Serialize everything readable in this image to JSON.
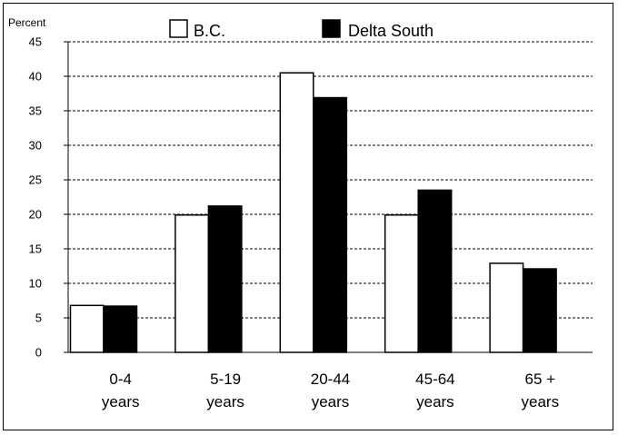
{
  "chart_data": {
    "type": "bar",
    "ylabel": "Percent",
    "ylim": [
      0,
      45
    ],
    "yticks": [
      0,
      5,
      10,
      15,
      20,
      25,
      30,
      35,
      40,
      45
    ],
    "grid": "horizontal dashed",
    "legend_position": "top",
    "categories": [
      [
        "0-4",
        "years"
      ],
      [
        "5-19",
        "years"
      ],
      [
        "20-44",
        "years"
      ],
      [
        "45-64",
        "years"
      ],
      [
        "65 +",
        "years"
      ]
    ],
    "series": [
      {
        "name": "B.C.",
        "values": [
          6.8,
          19.9,
          40.5,
          19.9,
          12.9
        ],
        "color": "#ffffff"
      },
      {
        "name": "Delta South",
        "values": [
          6.7,
          21.2,
          36.9,
          23.5,
          12.1
        ],
        "color": "#000000"
      }
    ]
  }
}
